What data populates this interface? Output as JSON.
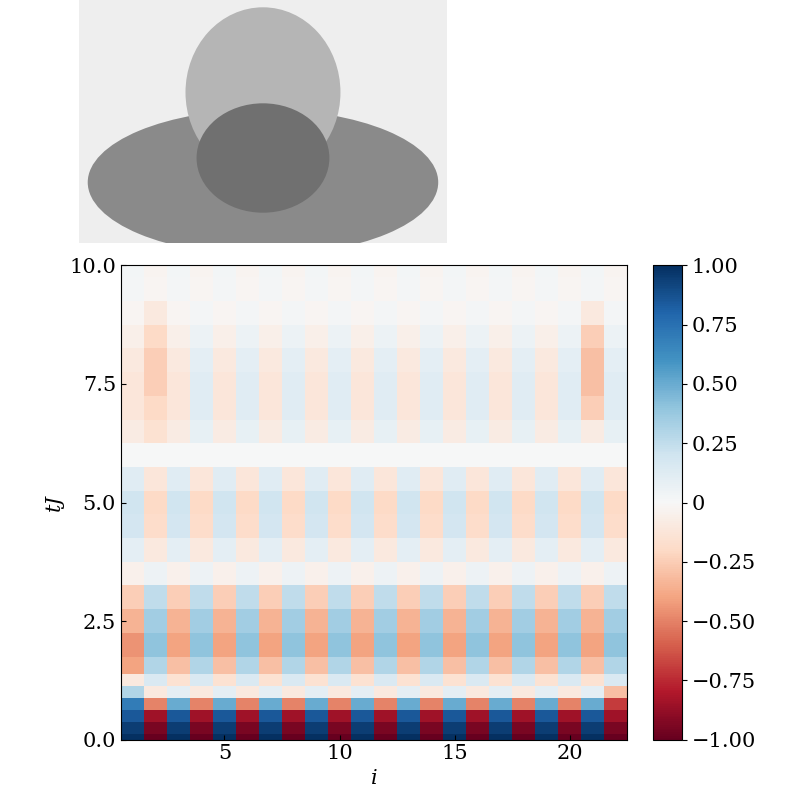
{
  "chart_data": {
    "type": "heatmap",
    "x_label": "i",
    "y_label": "tJ",
    "x": [
      1,
      2,
      3,
      4,
      5,
      6,
      7,
      8,
      9,
      10,
      11,
      12,
      13,
      14,
      15,
      16,
      17,
      18,
      19,
      20,
      21,
      22
    ],
    "y": [
      0,
      0.25,
      0.5,
      0.75,
      1.0,
      1.25,
      1.5,
      2.0,
      2.5,
      3.0,
      3.5,
      4.0,
      4.5,
      5.0,
      5.5,
      6.0,
      6.5,
      7.0,
      7.5,
      8.0,
      8.5,
      9.0,
      9.5,
      10.0
    ],
    "cells": [
      [
        1.0,
        -1.0,
        1.0,
        -1.0,
        1.0,
        -1.0,
        1.0,
        -1.0,
        1.0,
        -1.0,
        1.0,
        -1.0,
        1.0,
        -1.0,
        1.0,
        -1.0,
        1.0,
        -1.0,
        1.0,
        -1.0,
        1.0,
        -1.0
      ],
      [
        0.95,
        -0.95,
        0.95,
        -0.95,
        0.95,
        -0.95,
        0.95,
        -0.95,
        0.95,
        -0.95,
        0.95,
        -0.95,
        0.95,
        -0.95,
        0.95,
        -0.95,
        0.95,
        -0.95,
        0.95,
        -0.95,
        0.95,
        -0.95
      ],
      [
        0.85,
        -0.85,
        0.85,
        -0.85,
        0.85,
        -0.85,
        0.85,
        -0.85,
        0.85,
        -0.85,
        0.85,
        -0.85,
        0.85,
        -0.85,
        0.85,
        -0.85,
        0.85,
        -0.85,
        0.85,
        -0.85,
        0.85,
        -0.85
      ],
      [
        0.7,
        -0.5,
        0.5,
        -0.5,
        0.5,
        -0.5,
        0.5,
        -0.5,
        0.5,
        -0.5,
        0.5,
        -0.5,
        0.5,
        -0.5,
        0.5,
        -0.5,
        0.5,
        -0.5,
        0.5,
        -0.5,
        0.5,
        -0.7
      ],
      [
        0.3,
        -0.1,
        0.1,
        -0.1,
        0.1,
        -0.1,
        0.1,
        -0.1,
        0.1,
        -0.1,
        0.1,
        -0.1,
        0.1,
        -0.1,
        0.1,
        -0.1,
        0.1,
        -0.1,
        0.1,
        -0.1,
        0.1,
        -0.3
      ],
      [
        -0.1,
        0.15,
        -0.15,
        0.15,
        -0.15,
        0.15,
        -0.15,
        0.15,
        -0.15,
        0.15,
        -0.15,
        0.15,
        -0.15,
        0.15,
        -0.15,
        0.15,
        -0.15,
        0.15,
        -0.15,
        0.15,
        -0.15,
        0.15
      ],
      [
        -0.4,
        0.3,
        -0.3,
        0.3,
        -0.3,
        0.3,
        -0.3,
        0.3,
        -0.3,
        0.3,
        -0.3,
        0.3,
        -0.3,
        0.3,
        -0.3,
        0.3,
        -0.3,
        0.3,
        -0.3,
        0.3,
        -0.3,
        0.3
      ],
      [
        -0.45,
        0.4,
        -0.4,
        0.4,
        -0.4,
        0.4,
        -0.4,
        0.4,
        -0.4,
        0.4,
        -0.4,
        0.4,
        -0.4,
        0.4,
        -0.4,
        0.4,
        -0.4,
        0.4,
        -0.4,
        0.4,
        -0.4,
        0.4
      ],
      [
        -0.35,
        0.35,
        -0.35,
        0.35,
        -0.35,
        0.35,
        -0.35,
        0.35,
        -0.35,
        0.35,
        -0.35,
        0.35,
        -0.35,
        0.35,
        -0.35,
        0.35,
        -0.35,
        0.35,
        -0.35,
        0.35,
        -0.35,
        0.35
      ],
      [
        -0.25,
        0.25,
        -0.25,
        0.25,
        -0.25,
        0.25,
        -0.25,
        0.25,
        -0.25,
        0.25,
        -0.25,
        0.25,
        -0.25,
        0.25,
        -0.25,
        0.25,
        -0.25,
        0.25,
        -0.25,
        0.25,
        -0.25,
        0.25
      ],
      [
        -0.05,
        0.05,
        -0.05,
        0.05,
        -0.05,
        0.05,
        -0.05,
        0.05,
        -0.05,
        0.05,
        -0.05,
        0.05,
        -0.05,
        0.05,
        -0.05,
        0.05,
        -0.05,
        0.05,
        -0.05,
        0.05,
        -0.05,
        0.05
      ],
      [
        0.1,
        -0.1,
        0.1,
        -0.1,
        0.1,
        -0.1,
        0.1,
        -0.1,
        0.1,
        -0.1,
        0.1,
        -0.1,
        0.1,
        -0.1,
        0.1,
        -0.1,
        0.1,
        -0.1,
        0.1,
        -0.1,
        0.1,
        -0.1
      ],
      [
        0.18,
        -0.18,
        0.18,
        -0.18,
        0.18,
        -0.18,
        0.18,
        -0.18,
        0.18,
        -0.18,
        0.18,
        -0.18,
        0.18,
        -0.18,
        0.18,
        -0.18,
        0.18,
        -0.18,
        0.18,
        -0.18,
        0.18,
        -0.18
      ],
      [
        0.2,
        -0.2,
        0.2,
        -0.2,
        0.2,
        -0.2,
        0.2,
        -0.2,
        0.2,
        -0.2,
        0.2,
        -0.2,
        0.2,
        -0.2,
        0.2,
        -0.2,
        0.2,
        -0.2,
        0.2,
        -0.2,
        0.2,
        -0.2
      ],
      [
        0.12,
        -0.12,
        0.12,
        -0.12,
        0.12,
        -0.12,
        0.12,
        -0.12,
        0.12,
        -0.12,
        0.12,
        -0.12,
        0.12,
        -0.12,
        0.12,
        -0.12,
        0.12,
        -0.12,
        0.12,
        -0.12,
        0.12,
        -0.12
      ],
      [
        0.0,
        0.0,
        0.0,
        0.0,
        0.0,
        0.0,
        0.0,
        0.0,
        0.0,
        0.0,
        0.0,
        0.0,
        0.0,
        0.0,
        0.0,
        0.0,
        0.0,
        0.0,
        0.0,
        0.0,
        0.0,
        0.0
      ],
      [
        -0.08,
        -0.15,
        -0.08,
        0.08,
        -0.08,
        0.08,
        -0.08,
        0.08,
        -0.08,
        0.08,
        -0.08,
        0.08,
        -0.08,
        0.08,
        -0.08,
        0.08,
        -0.08,
        0.08,
        -0.08,
        0.08,
        -0.08,
        0.08
      ],
      [
        -0.12,
        -0.2,
        -0.12,
        0.12,
        -0.12,
        0.12,
        -0.12,
        0.12,
        -0.12,
        0.12,
        -0.12,
        0.12,
        -0.12,
        0.12,
        -0.12,
        0.12,
        -0.12,
        0.12,
        -0.12,
        0.12,
        -0.25,
        0.12
      ],
      [
        -0.12,
        -0.25,
        -0.12,
        0.12,
        -0.12,
        0.12,
        -0.12,
        0.12,
        -0.12,
        0.12,
        -0.12,
        0.12,
        -0.12,
        0.12,
        -0.12,
        0.12,
        -0.12,
        0.12,
        -0.12,
        0.12,
        -0.3,
        0.12
      ],
      [
        -0.1,
        -0.25,
        -0.1,
        0.1,
        -0.1,
        0.1,
        -0.1,
        0.1,
        -0.1,
        0.1,
        -0.1,
        0.1,
        -0.1,
        0.1,
        -0.1,
        0.1,
        -0.1,
        0.1,
        -0.1,
        0.1,
        -0.3,
        0.1
      ],
      [
        -0.06,
        -0.2,
        -0.06,
        0.06,
        -0.06,
        0.06,
        -0.06,
        0.06,
        -0.06,
        0.06,
        -0.06,
        0.06,
        -0.06,
        0.06,
        -0.06,
        0.06,
        -0.06,
        0.06,
        -0.06,
        0.06,
        -0.25,
        0.06
      ],
      [
        -0.02,
        -0.1,
        -0.02,
        0.02,
        -0.02,
        0.02,
        -0.02,
        0.02,
        -0.02,
        0.02,
        -0.02,
        0.02,
        -0.02,
        0.02,
        -0.02,
        0.02,
        -0.02,
        0.02,
        -0.02,
        0.02,
        -0.1,
        0.02
      ],
      [
        0.02,
        -0.02,
        0.02,
        -0.02,
        0.02,
        -0.02,
        0.02,
        -0.02,
        0.02,
        -0.02,
        0.02,
        -0.02,
        0.02,
        -0.02,
        0.02,
        -0.02,
        0.02,
        -0.02,
        0.02,
        -0.02,
        0.02,
        -0.02
      ],
      [
        0.03,
        -0.03,
        0.03,
        -0.03,
        0.03,
        -0.03,
        0.03,
        -0.03,
        0.03,
        -0.03,
        0.03,
        -0.03,
        0.03,
        -0.03,
        0.03,
        -0.03,
        0.03,
        -0.03,
        0.03,
        -0.03,
        0.03,
        -0.03
      ]
    ],
    "xlim": [
      0.5,
      22.5
    ],
    "ylim": [
      0,
      10
    ],
    "xticks": [
      5,
      10,
      15,
      20
    ],
    "yticks": [
      {
        "value": 0,
        "label": "0.0"
      },
      2.5,
      {
        "value": 5,
        "label": "5.0"
      },
      7.5,
      {
        "value": 10,
        "label": "10.0"
      }
    ],
    "colorbar_range": [
      -1,
      1
    ],
    "colorbar_ticks": [
      {
        "value": -1,
        "label": "−1.00"
      },
      {
        "value": -0.75,
        "label": "−0.75"
      },
      {
        "value": -0.5,
        "label": "−0.50"
      },
      {
        "value": -0.25,
        "label": "−0.25"
      },
      0,
      {
        "value": 0.25,
        "label": "0.25"
      },
      {
        "value": 0.5,
        "label": "0.50"
      },
      {
        "value": 0.75,
        "label": "0.75"
      },
      {
        "value": 1,
        "label": "1.00"
      }
    ]
  }
}
